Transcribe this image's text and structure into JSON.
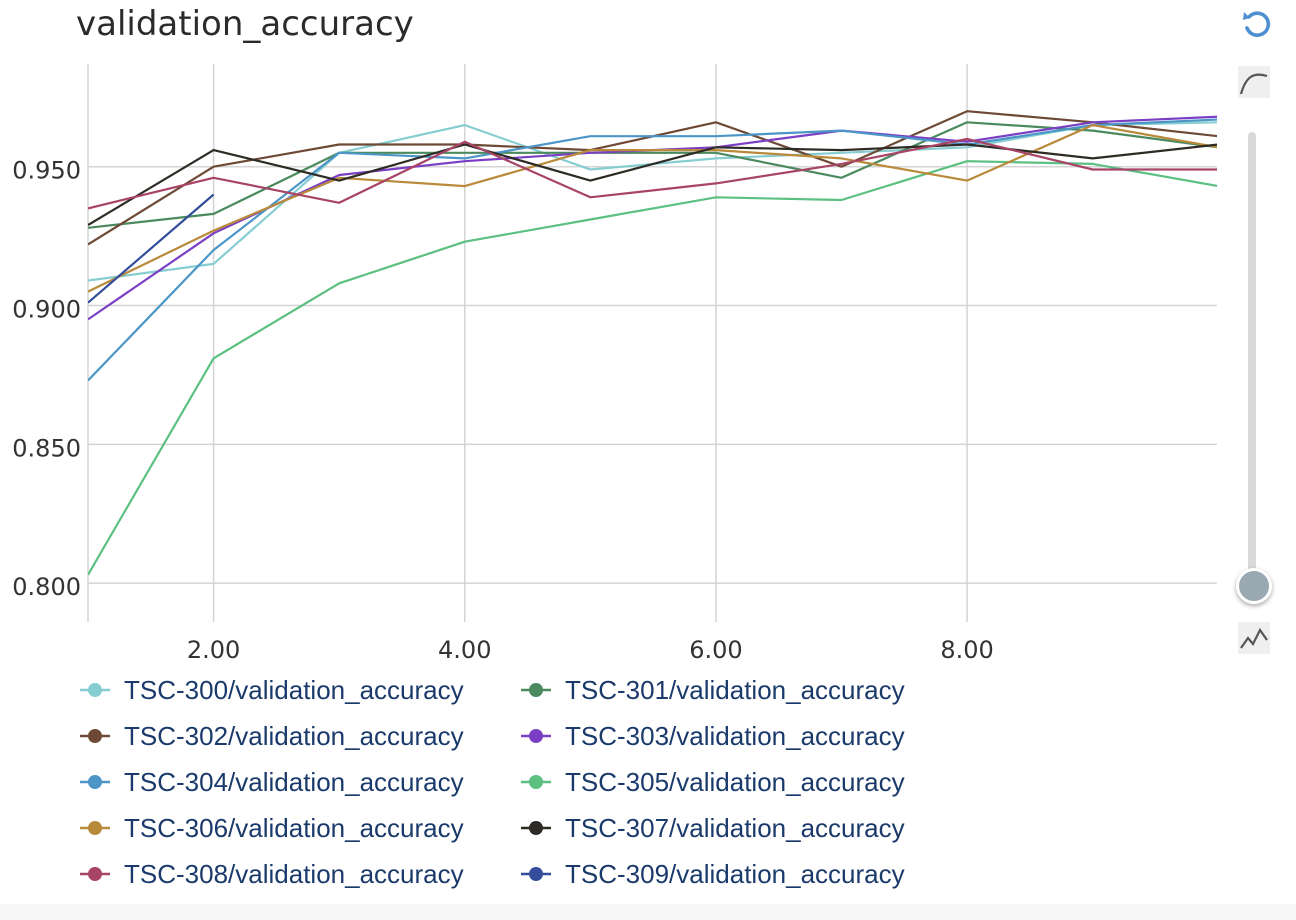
{
  "chart_data": {
    "type": "line",
    "title": "validation_accuracy",
    "xlim": [
      1,
      9.99
    ],
    "ylim": [
      0.786,
      0.987
    ],
    "x_ticks": [
      2,
      4,
      6,
      8
    ],
    "x_tick_labels": [
      "2.00",
      "4.00",
      "6.00",
      "8.00"
    ],
    "y_ticks": [
      0.8,
      0.85,
      0.9,
      0.95
    ],
    "y_tick_labels": [
      "0.800",
      "0.850",
      "0.900",
      "0.950"
    ],
    "grid": true,
    "legend_position": "bottom",
    "series": [
      {
        "name": "TSC-300/validation_accuracy",
        "color": "#86cdd2",
        "x": [
          1,
          2,
          3,
          4,
          5,
          6,
          7,
          8,
          9,
          10
        ],
        "y": [
          0.909,
          0.915,
          0.955,
          0.965,
          0.949,
          0.953,
          0.955,
          0.957,
          0.965,
          0.966
        ]
      },
      {
        "name": "TSC-301/validation_accuracy",
        "color": "#4b8a5e",
        "x": [
          1,
          2,
          3,
          4,
          5,
          6,
          7,
          8,
          9,
          10
        ],
        "y": [
          0.928,
          0.933,
          0.955,
          0.955,
          0.955,
          0.955,
          0.946,
          0.966,
          0.963,
          0.957
        ]
      },
      {
        "name": "TSC-302/validation_accuracy",
        "color": "#6e4a36",
        "x": [
          1,
          2,
          3,
          4,
          5,
          6,
          7,
          8,
          9,
          10
        ],
        "y": [
          0.922,
          0.95,
          0.958,
          0.958,
          0.956,
          0.966,
          0.95,
          0.97,
          0.966,
          0.961
        ]
      },
      {
        "name": "TSC-303/validation_accuracy",
        "color": "#7a3fc4",
        "x": [
          1,
          2,
          3,
          4,
          5,
          6,
          7,
          8,
          9,
          10
        ],
        "y": [
          0.895,
          0.926,
          0.947,
          0.952,
          0.955,
          0.957,
          0.963,
          0.959,
          0.966,
          0.968
        ]
      },
      {
        "name": "TSC-304/validation_accuracy",
        "color": "#4c96c7",
        "x": [
          1,
          2,
          3,
          4,
          5,
          6,
          7,
          8,
          9,
          10
        ],
        "y": [
          0.873,
          0.92,
          0.955,
          0.953,
          0.961,
          0.961,
          0.963,
          0.958,
          0.965,
          0.967
        ]
      },
      {
        "name": "TSC-305/validation_accuracy",
        "color": "#5cc080",
        "x": [
          1,
          2,
          3,
          4,
          5,
          6,
          7,
          8,
          9,
          10
        ],
        "y": [
          0.803,
          0.881,
          0.908,
          0.923,
          0.931,
          0.939,
          0.938,
          0.952,
          0.951,
          0.943
        ]
      },
      {
        "name": "TSC-306/validation_accuracy",
        "color": "#b88a3a",
        "x": [
          1,
          2,
          3,
          4,
          5,
          6,
          7,
          8,
          9,
          10
        ],
        "y": [
          0.905,
          0.927,
          0.946,
          0.943,
          0.956,
          0.956,
          0.953,
          0.945,
          0.965,
          0.957
        ]
      },
      {
        "name": "TSC-307/validation_accuracy",
        "color": "#2e2a24",
        "x": [
          1,
          2,
          3,
          4,
          5,
          6,
          7,
          8,
          9,
          10
        ],
        "y": [
          0.929,
          0.956,
          0.945,
          0.958,
          0.945,
          0.957,
          0.956,
          0.958,
          0.953,
          0.958
        ]
      },
      {
        "name": "TSC-308/validation_accuracy",
        "color": "#a84466",
        "x": [
          1,
          2,
          3,
          4,
          5,
          6,
          7,
          8,
          9,
          10
        ],
        "y": [
          0.935,
          0.946,
          0.937,
          0.959,
          0.939,
          0.944,
          0.951,
          0.96,
          0.949,
          0.949
        ]
      },
      {
        "name": "TSC-309/validation_accuracy",
        "color": "#354e9c",
        "x": [
          1,
          2
        ],
        "y": [
          0.901,
          0.94
        ]
      }
    ]
  },
  "icons": {
    "reset": "reset-icon",
    "smooth": "smooth-curve-icon",
    "raw": "raw-line-icon"
  }
}
